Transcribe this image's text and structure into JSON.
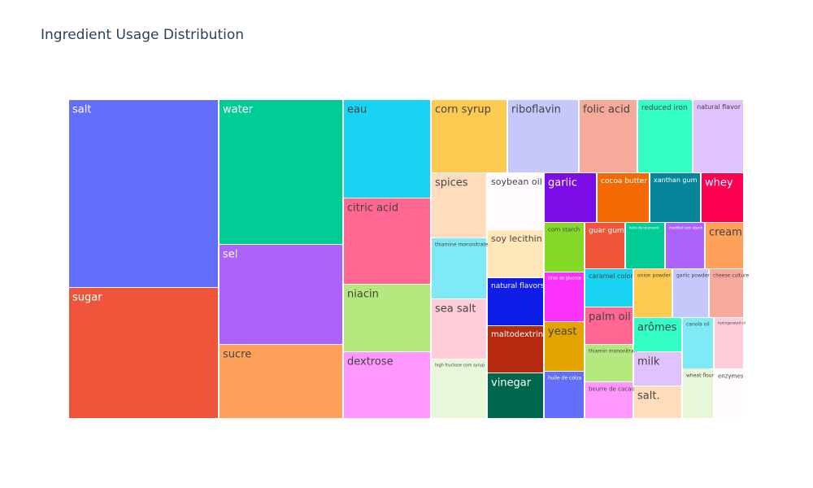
{
  "chart_data": {
    "type": "treemap",
    "title": "Ingredient Usage Distribution",
    "items": [
      {
        "label": "salt",
        "color": "#636efa"
      },
      {
        "label": "sugar",
        "color": "#ef553b"
      },
      {
        "label": "water",
        "color": "#00cc96"
      },
      {
        "label": "sel",
        "color": "#ab63fa"
      },
      {
        "label": "sucre",
        "color": "#ffa15a"
      },
      {
        "label": "eau",
        "color": "#19d3f3"
      },
      {
        "label": "citric acid",
        "color": "#ff6692"
      },
      {
        "label": "niacin",
        "color": "#b6e880"
      },
      {
        "label": "dextrose",
        "color": "#ff97ff"
      },
      {
        "label": "corn syrup",
        "color": "#fecb52"
      },
      {
        "label": "spices",
        "color": "#ffdcbb"
      },
      {
        "label": "thiamine mononitrate",
        "color": "#7eeaf5"
      },
      {
        "label": "sea salt",
        "color": "#ffccda"
      },
      {
        "label": "high fructose corn syrup",
        "color": "#e8f6da"
      },
      {
        "label": "soybean oil",
        "color": "#fffbff"
      },
      {
        "label": "soy lecithin",
        "color": "#ffe7b9"
      },
      {
        "label": "natural flavors",
        "color": "#0f1de8"
      },
      {
        "label": "maltodextrin",
        "color": "#b5290f"
      },
      {
        "label": "vinegar",
        "color": "#00664b"
      },
      {
        "label": "riboflavin",
        "color": "#c6c8fc"
      },
      {
        "label": "folic acid",
        "color": "#f7a99c"
      },
      {
        "label": "reduced iron",
        "color": "#33ffc4"
      },
      {
        "label": "natural flavor",
        "color": "#e0c3fc"
      },
      {
        "label": "garlic",
        "color": "#7b0ce8"
      },
      {
        "label": "cocoa butter",
        "color": "#f56905"
      },
      {
        "label": "xanthan gum",
        "color": "#06869a"
      },
      {
        "label": "whey",
        "color": "#ff0050"
      },
      {
        "label": "corn starch",
        "color": "#84d926"
      },
      {
        "label": "guar gum",
        "color": "#ef553b"
      },
      {
        "label": "huile de tournesol",
        "color": "#00cc96"
      },
      {
        "label": "modified corn starch",
        "color": "#ab63fa"
      },
      {
        "label": "cream",
        "color": "#ffa15a"
      },
      {
        "label": "sirop de glucose",
        "color": "#fb32fc"
      },
      {
        "label": "caramel color",
        "color": "#19d3f3"
      },
      {
        "label": "onion powder",
        "color": "#fecb52"
      },
      {
        "label": "garlic powder",
        "color": "#c6c8fc"
      },
      {
        "label": "cheese culture",
        "color": "#f7a99c"
      },
      {
        "label": "palm oil",
        "color": "#ff6692"
      },
      {
        "label": "yeast",
        "color": "#e5a300"
      },
      {
        "label": "thiamin mononitrate",
        "color": "#b6e880"
      },
      {
        "label": "arômes",
        "color": "#33ffc4"
      },
      {
        "label": "canola oil",
        "color": "#7eeaf5"
      },
      {
        "label": "hydrogenated oil",
        "color": "#ffccda"
      },
      {
        "label": "milk",
        "color": "#e0c3fc"
      },
      {
        "label": "huile de colza",
        "color": "#636efa"
      },
      {
        "label": "beurre de cacao",
        "color": "#ff97ff"
      },
      {
        "label": "salt.",
        "color": "#ffdcbb"
      },
      {
        "label": "wheat flour",
        "color": "#e8f6da"
      },
      {
        "label": "enzymes",
        "color": "#fffbff"
      }
    ]
  }
}
